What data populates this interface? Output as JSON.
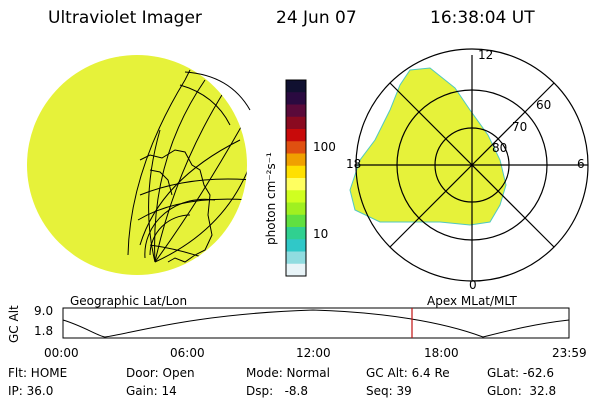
{
  "header": {
    "title": "Ultraviolet Imager",
    "date": "24 Jun 07",
    "time": "16:38:04 UT"
  },
  "colorbar": {
    "unit": "photon cm⁻²s⁻¹",
    "ticks": [
      "100",
      "10"
    ],
    "colors": [
      "#101030",
      "#2a0a40",
      "#5a0a3a",
      "#8a0a20",
      "#c80a0a",
      "#e05010",
      "#f0a000",
      "#ffe000",
      "#ffff60",
      "#d0ff20",
      "#a0f020",
      "#60e040",
      "#30d090",
      "#30c8c8",
      "#90dce0",
      "#e8f4f8"
    ]
  },
  "panels": {
    "left_label": "Geographic Lat/Lon",
    "right_label": "Apex MLat/MLT",
    "polar_ticks": {
      "top": "12",
      "left": "18",
      "right": "6",
      "bottom": "0"
    },
    "rings": [
      "60",
      "70",
      "80"
    ],
    "image_color": "#e6f23a"
  },
  "timeline": {
    "axis_label": "GC Alt",
    "y_ticks": [
      "9.0",
      "1.8"
    ],
    "x_ticks": [
      "00:00",
      "06:00",
      "12:00",
      "18:00",
      "23:59"
    ],
    "marker_color": "#c01010"
  },
  "info": {
    "filter": "Flt: HOME",
    "door": "Door: Open",
    "mode": "Mode: Normal",
    "gc_alt": "GC Alt: 6.4 Re",
    "glat": "GLat: -62.6",
    "ip": "IP: 36.0",
    "gain": "Gain: 14",
    "dsp": "Dsp:   -8.8",
    "seq": "Seq: 39",
    "glon": "GLon:  32.8"
  }
}
